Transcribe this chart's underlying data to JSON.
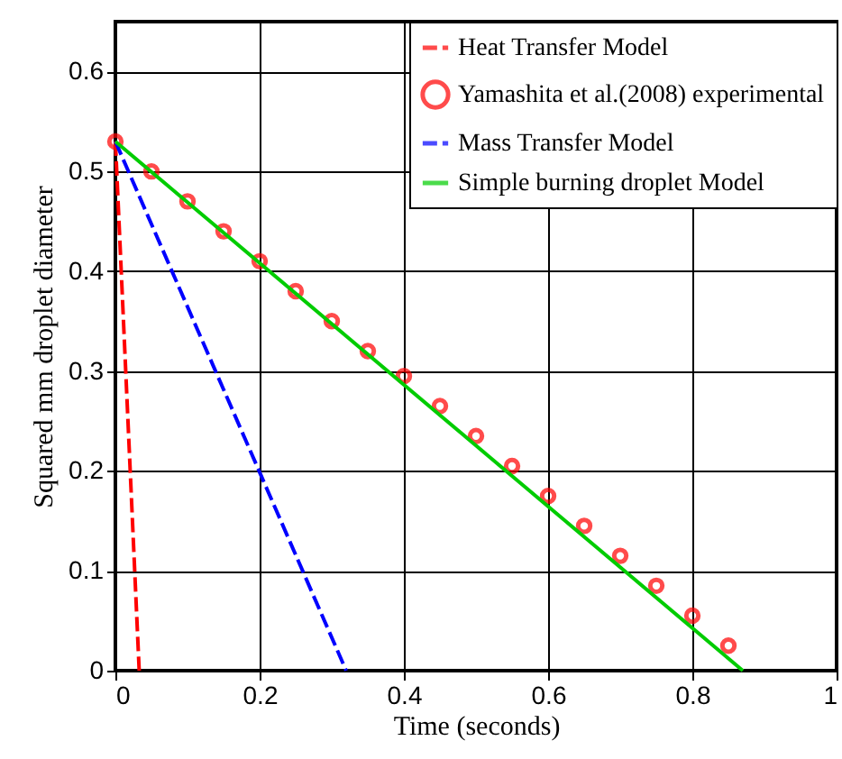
{
  "chart_data": {
    "type": "line",
    "xlabel": "Time (seconds)",
    "ylabel": "Squared mm droplet diameter",
    "xlim": [
      0,
      1
    ],
    "ylim": [
      0,
      0.65
    ],
    "xticks": [
      0,
      0.2,
      0.4,
      0.6,
      0.8,
      1
    ],
    "yticks": [
      0,
      0.1,
      0.2,
      0.3,
      0.4,
      0.5,
      0.6
    ],
    "grid": true,
    "legend": "top right",
    "series": [
      {
        "name": "Heat Transfer Model",
        "type": "line",
        "color": "#ff0000",
        "line_style": "dashed",
        "marker": "none",
        "x": [
          0,
          0.033
        ],
        "values": [
          0.53,
          0
        ]
      },
      {
        "name": "Yamashita et al.(2008) experimental",
        "type": "scatter",
        "color": "#ff0000",
        "marker": "circle",
        "x": [
          0,
          0.05,
          0.1,
          0.15,
          0.2,
          0.25,
          0.3,
          0.35,
          0.4,
          0.45,
          0.5,
          0.55,
          0.6,
          0.65,
          0.7,
          0.75,
          0.8,
          0.85
        ],
        "values": [
          0.53,
          0.5,
          0.47,
          0.44,
          0.41,
          0.38,
          0.35,
          0.32,
          0.295,
          0.265,
          0.235,
          0.205,
          0.175,
          0.145,
          0.115,
          0.085,
          0.055,
          0.025
        ]
      },
      {
        "name": "Mass Transfer Model",
        "type": "line",
        "color": "#0000ff",
        "line_style": "dashed",
        "marker": "none",
        "x": [
          0,
          0.32
        ],
        "values": [
          0.53,
          0
        ]
      },
      {
        "name": "Simple burning droplet Model",
        "type": "line",
        "color": "#00cc00",
        "line_style": "solid",
        "marker": "none",
        "x": [
          0,
          0.87
        ],
        "values": [
          0.53,
          0
        ]
      }
    ]
  }
}
